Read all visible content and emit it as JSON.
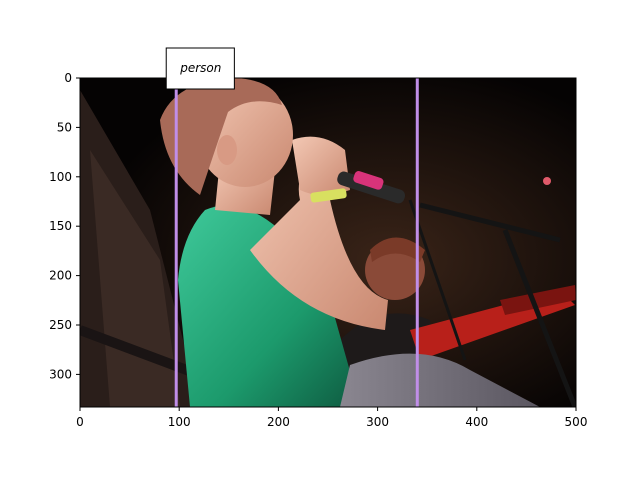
{
  "chart_data": {
    "type": "image-annotation",
    "title": "",
    "xlabel": "",
    "ylabel": "",
    "xlim": [
      0,
      500
    ],
    "ylim": [
      333,
      0
    ],
    "x_ticks": [
      0,
      100,
      200,
      300,
      400,
      500
    ],
    "y_ticks": [
      0,
      50,
      100,
      150,
      200,
      250,
      300
    ],
    "annotations": [
      {
        "label": "person",
        "x": 97,
        "line_color": "#c08ee8"
      },
      {
        "label": "",
        "x": 340,
        "line_color": "#c08ee8"
      }
    ]
  },
  "colors": {
    "annotation_line": "#c08ee8",
    "spine": "#000000",
    "background": "#ffffff"
  },
  "photo": {
    "description_icon": "concert-singer-photo"
  }
}
